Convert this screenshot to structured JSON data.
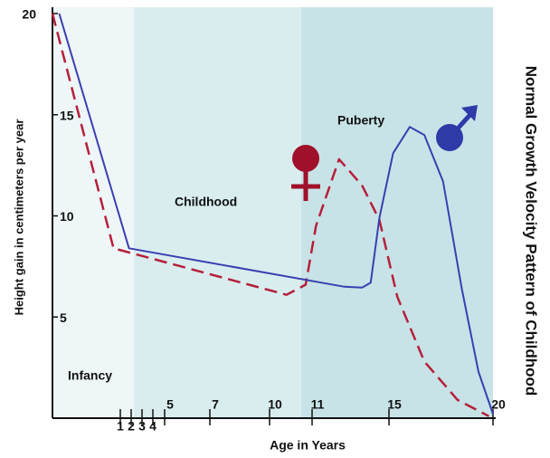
{
  "chart_data": {
    "type": "line",
    "title": "Normal Growth Velocity Pattern of Childhood",
    "x_label": "Age in Years",
    "y_label": "Height  gain in centimeters  per year",
    "regions": [
      "Infancy",
      "Childhood",
      "Puberty"
    ],
    "xlim": [
      0,
      20
    ],
    "xticks": [
      1,
      2,
      3,
      4,
      5,
      7,
      10,
      11,
      15,
      20
    ],
    "ylim": [
      0,
      20
    ],
    "yticks": [
      5,
      10,
      15,
      20
    ],
    "series": [
      {
        "color": "#b5203a",
        "dashed": true,
        "x": [
          0,
          0.9,
          10.4,
          10.85,
          11.2,
          12.4,
          13.6,
          14.5,
          15.4,
          16.7,
          18.3,
          19.8
        ],
        "values": [
          20,
          8.4,
          6.1,
          6.6,
          9.5,
          12.8,
          11.5,
          9.8,
          6,
          2.8,
          0.9,
          0.1
        ]
      },
      {
        "color": "#3a3fb0",
        "dashed": false,
        "x": [
          0.1,
          1.8,
          12.65,
          13.6,
          14.05,
          14.5,
          15.2,
          16,
          16.7,
          17.6,
          18.5,
          19.3,
          20
        ],
        "values": [
          20,
          8.4,
          6.5,
          6.45,
          6.7,
          9.9,
          13.1,
          14.4,
          14,
          11.7,
          6.4,
          2.3,
          0.2
        ]
      }
    ]
  }
}
